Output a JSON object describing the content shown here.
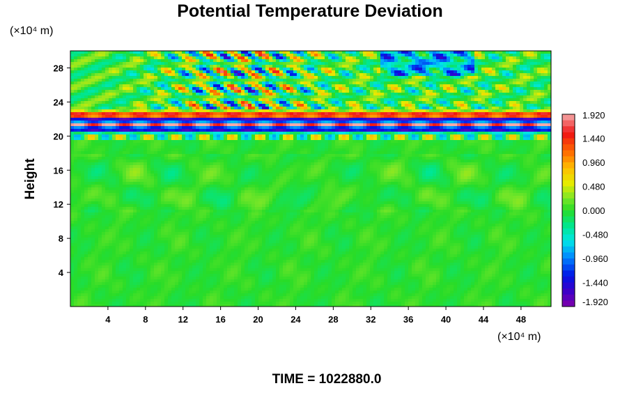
{
  "chart_data": {
    "type": "heatmap",
    "title": "Potential Temperature Deviation",
    "ylabel": "Height",
    "x_unit": "(×10⁴ m)",
    "y_unit": "(×10⁴ m)",
    "xlim": [
      0,
      51.2
    ],
    "ylim": [
      0,
      30
    ],
    "x_ticks": [
      4,
      8,
      12,
      16,
      20,
      24,
      28,
      32,
      36,
      40,
      44,
      48
    ],
    "y_ticks": [
      4,
      8,
      12,
      16,
      20,
      24,
      28
    ],
    "colorbar": {
      "range": [
        -1.92,
        1.92
      ],
      "step": 0.12,
      "tick_labels": [
        "1.920",
        "1.440",
        "0.960",
        "0.480",
        "0.000",
        "-0.480",
        "-0.960",
        "-1.440",
        "-1.920"
      ]
    },
    "footer": "TIME = 1022880.0",
    "field_description_values": {
      "bands": [
        {
          "y": 20.8,
          "value": -1.92
        },
        {
          "y": 21.3,
          "value": 1.92
        },
        {
          "y": 21.9,
          "value": -1.92
        },
        {
          "y": 22.5,
          "value": 1.92
        }
      ]
    }
  }
}
